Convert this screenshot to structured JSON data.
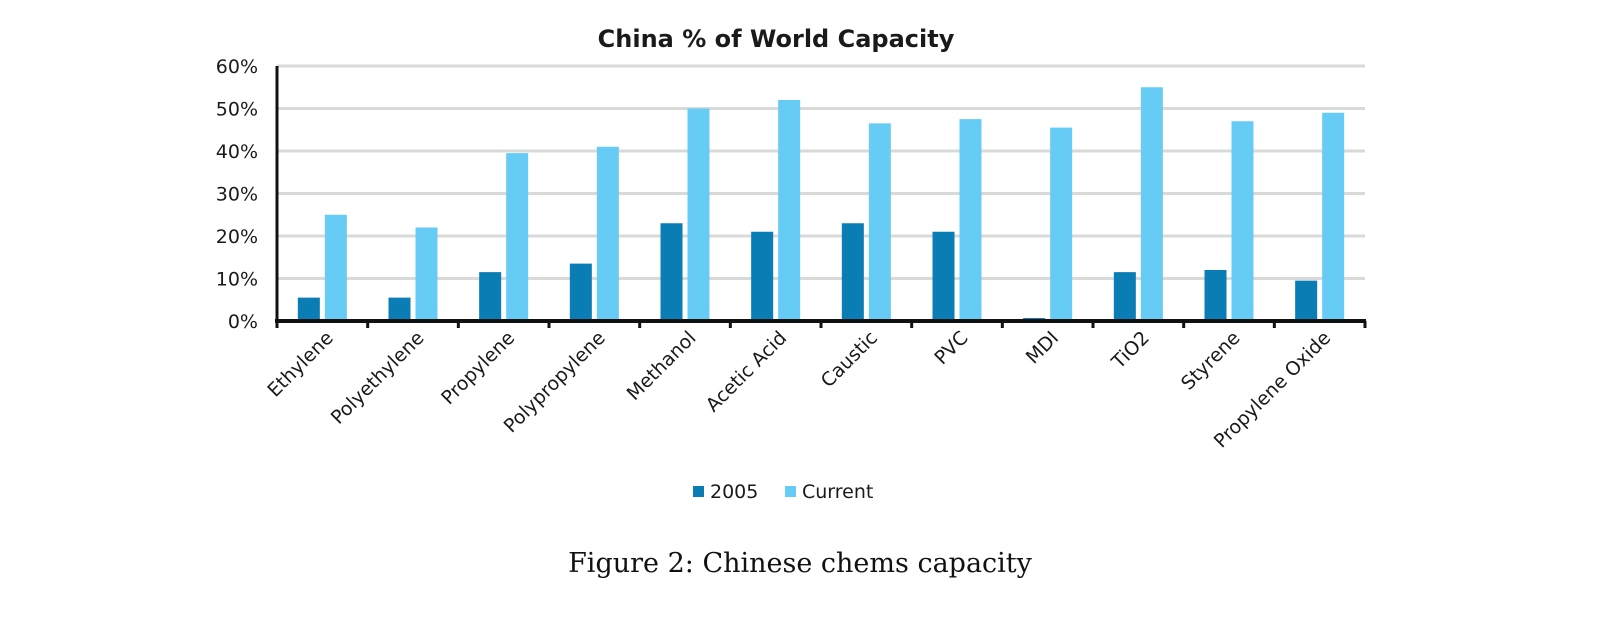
{
  "caption": "Figure 2: Chinese chems capacity",
  "chart_data": {
    "type": "bar",
    "title": "China % of World Capacity",
    "xlabel": "",
    "ylabel": "",
    "ylim": [
      0,
      60
    ],
    "yticks": [
      0,
      10,
      20,
      30,
      40,
      50,
      60
    ],
    "ytick_labels": [
      "0%",
      "10%",
      "20%",
      "30%",
      "40%",
      "50%",
      "60%"
    ],
    "grid": true,
    "legend_position": "bottom",
    "categories": [
      "Ethylene",
      "Polyethylene",
      "Propylene",
      "Polypropylene",
      "Methanol",
      "Acetic Acid",
      "Caustic",
      "PVC",
      "MDI",
      "TiO2",
      "Styrene",
      "Propylene Oxide"
    ],
    "series": [
      {
        "name": "2005",
        "color": "#0b7db5",
        "values": [
          5.5,
          5.5,
          11.5,
          13.5,
          23,
          21,
          23,
          21,
          0.7,
          11.5,
          12,
          9.5
        ]
      },
      {
        "name": "Current",
        "color": "#66ccf5",
        "values": [
          25,
          22,
          39.5,
          41,
          50,
          52,
          46.5,
          47.5,
          45.5,
          55,
          47,
          49
        ]
      }
    ]
  }
}
